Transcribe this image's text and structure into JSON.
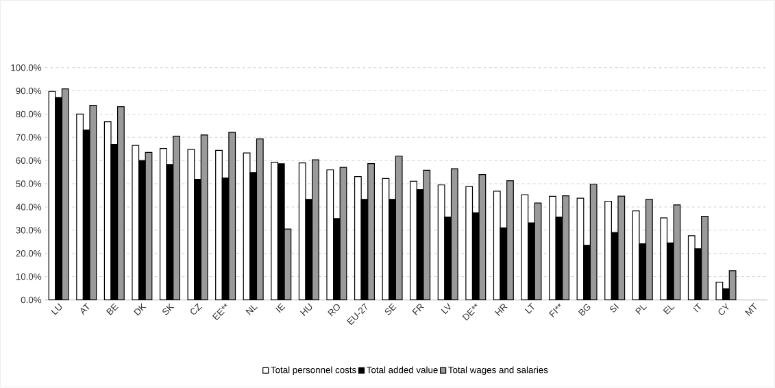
{
  "chart_data": {
    "type": "bar",
    "categories": [
      "LU",
      "AT",
      "BE",
      "DK",
      "SK",
      "CZ",
      "EE**",
      "NL",
      "IE",
      "HU",
      "RO",
      "EU-27",
      "SE",
      "FR",
      "LV",
      "DE**",
      "HR",
      "LT",
      "FI**",
      "BG",
      "SI",
      "PL",
      "EL",
      "IT",
      "CY",
      "MT"
    ],
    "series": [
      {
        "name": "Total personnel costs",
        "color": "#ffffff",
        "values": [
          89.8,
          80.0,
          76.7,
          66.5,
          65.2,
          64.8,
          64.4,
          63.3,
          59.3,
          59.0,
          56.0,
          53.1,
          52.3,
          51.1,
          49.5,
          48.8,
          46.8,
          45.3,
          44.6,
          43.8,
          42.5,
          38.3,
          35.3,
          27.6,
          7.6,
          null
        ]
      },
      {
        "name": "Total added value",
        "color": "#000000",
        "values": [
          87.1,
          73.2,
          67.0,
          60.0,
          58.3,
          51.9,
          52.5,
          54.8,
          58.6,
          43.3,
          35.0,
          43.3,
          43.3,
          47.5,
          35.7,
          37.5,
          31.0,
          33.2,
          35.7,
          23.5,
          29.0,
          24.2,
          24.5,
          22.0,
          4.8,
          null
        ]
      },
      {
        "name": "Total wages and salaries",
        "color": "#9a9a9a",
        "values": [
          90.9,
          83.8,
          83.2,
          63.5,
          70.5,
          71.0,
          72.1,
          69.3,
          30.5,
          60.3,
          57.1,
          58.7,
          61.9,
          55.8,
          56.5,
          54.0,
          51.3,
          41.7,
          44.8,
          49.8,
          44.7,
          43.3,
          40.9,
          36.0,
          12.6,
          null
        ]
      }
    ],
    "ylim": [
      0,
      100
    ],
    "yticks": [
      {
        "value": 0,
        "label": "0.0%"
      },
      {
        "value": 10,
        "label": "10.0%"
      },
      {
        "value": 20,
        "label": "20.0%"
      },
      {
        "value": 30,
        "label": "30.0%"
      },
      {
        "value": 40,
        "label": "40.0%"
      },
      {
        "value": 50,
        "label": "50.0%"
      },
      {
        "value": 60,
        "label": "60.0%"
      },
      {
        "value": 70,
        "label": "70.0%"
      },
      {
        "value": 80,
        "label": "80.0%"
      },
      {
        "value": 90,
        "label": "90.0%"
      },
      {
        "value": 100,
        "label": "100.0%"
      }
    ],
    "grid": "y",
    "legend": "bottom"
  }
}
